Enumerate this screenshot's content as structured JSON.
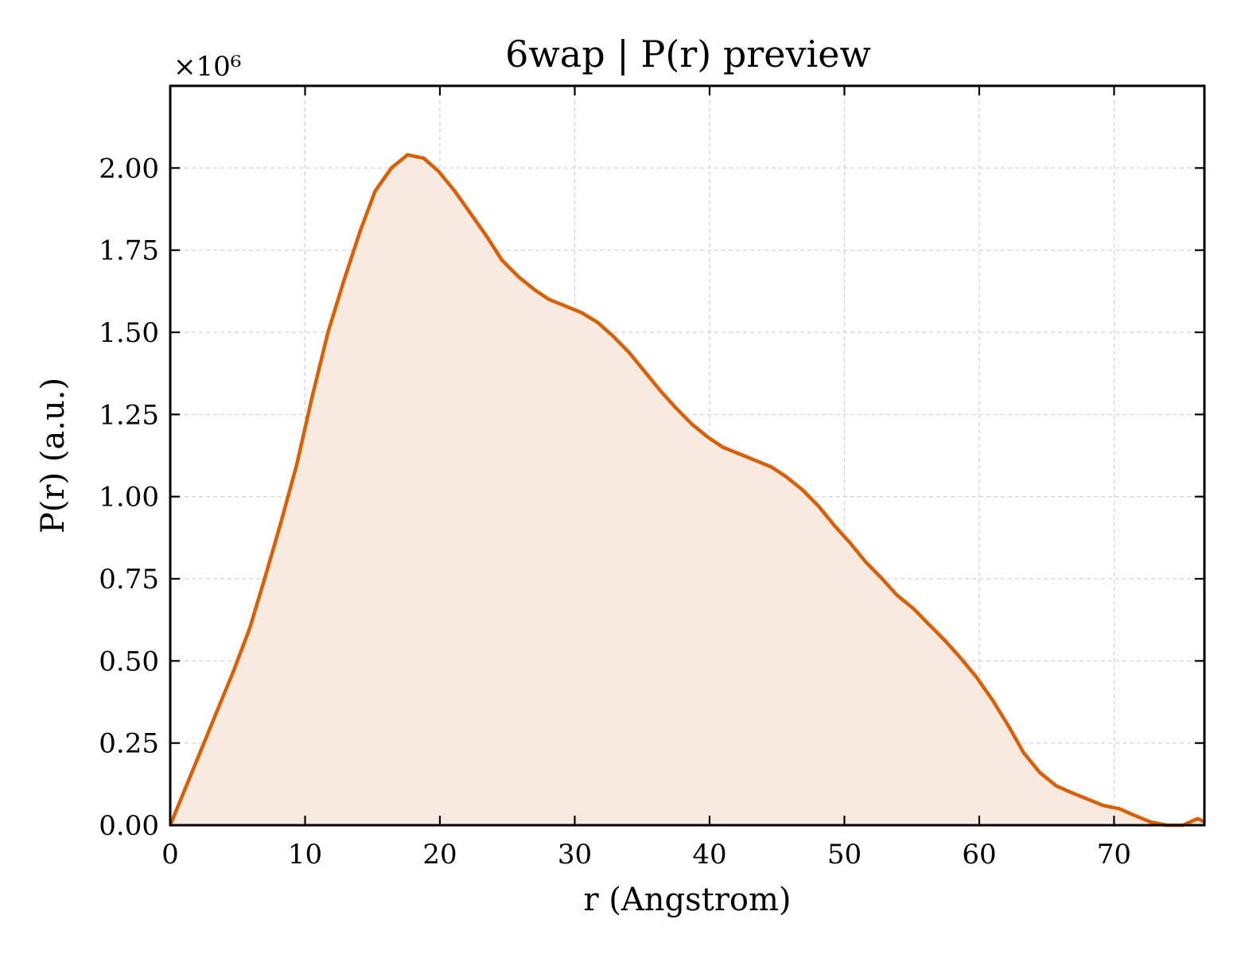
{
  "chart_data": {
    "type": "area",
    "title": "6wap | P(r) preview",
    "xlabel": "r (Angstrom)",
    "ylabel": "P(r) (a.u.)",
    "y_offset_label": "×10⁶",
    "xlim": [
      0,
      76.7
    ],
    "ylim": [
      0,
      2.25
    ],
    "xticks": [
      0,
      10,
      20,
      30,
      40,
      50,
      60,
      70
    ],
    "xtick_labels": [
      "0",
      "10",
      "20",
      "30",
      "40",
      "50",
      "60",
      "70"
    ],
    "yticks": [
      0,
      0.25,
      0.5,
      0.75,
      1.0,
      1.25,
      1.5,
      1.75,
      2.0
    ],
    "ytick_labels": [
      "0.00",
      "0.25",
      "0.50",
      "0.75",
      "1.00",
      "1.25",
      "1.50",
      "1.75",
      "2.00"
    ],
    "grid": true,
    "line_color": "#d95f02",
    "fill_color": "#f8eadf",
    "series": [
      {
        "x": [
          0,
          1.2,
          2.3,
          3.5,
          4.7,
          5.9,
          7.0,
          8.2,
          9.4,
          10.5,
          11.7,
          12.9,
          14.1,
          15.2,
          16.4,
          17.6,
          18.8,
          19.9,
          21.1,
          22.3,
          23.5,
          24.6,
          25.8,
          27.0,
          28.1,
          29.3,
          30.5,
          31.7,
          32.8,
          34.0,
          35.2,
          36.4,
          37.5,
          38.7,
          39.9,
          41.0,
          42.2,
          43.4,
          44.6,
          45.7,
          46.9,
          48.1,
          49.3,
          50.4,
          51.6,
          52.8,
          53.9,
          55.1,
          56.3,
          57.5,
          58.6,
          59.8,
          61.0,
          62.2,
          63.3,
          64.5,
          65.7,
          66.8,
          68.0,
          69.2,
          70.4,
          71.5,
          72.7,
          73.9,
          75.1,
          76.2,
          76.7
        ],
        "y": [
          0.0,
          0.12,
          0.23,
          0.35,
          0.47,
          0.6,
          0.75,
          0.92,
          1.1,
          1.3,
          1.5,
          1.66,
          1.81,
          1.93,
          2.0,
          2.04,
          2.03,
          1.99,
          1.93,
          1.86,
          1.79,
          1.72,
          1.67,
          1.63,
          1.6,
          1.58,
          1.56,
          1.53,
          1.49,
          1.44,
          1.38,
          1.32,
          1.27,
          1.22,
          1.18,
          1.15,
          1.13,
          1.11,
          1.09,
          1.06,
          1.02,
          0.97,
          0.91,
          0.86,
          0.8,
          0.75,
          0.7,
          0.66,
          0.61,
          0.56,
          0.51,
          0.45,
          0.38,
          0.3,
          0.22,
          0.16,
          0.12,
          0.1,
          0.08,
          0.06,
          0.05,
          0.03,
          0.01,
          0.0,
          0.0,
          0.02,
          0.01
        ]
      }
    ]
  }
}
